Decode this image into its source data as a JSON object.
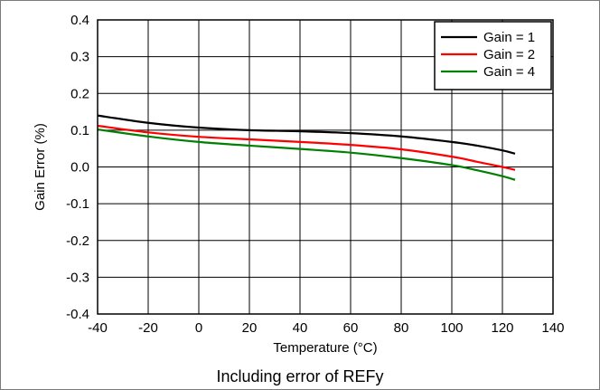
{
  "chart_data": {
    "type": "line",
    "title": "",
    "caption": "Including error of REFy",
    "xlabel": "Temperature (°C)",
    "ylabel": "Gain Error (%)",
    "xlim": [
      -40,
      140
    ],
    "ylim": [
      -0.4,
      0.4
    ],
    "x_ticks": [
      -40,
      -20,
      0,
      20,
      40,
      60,
      80,
      100,
      120,
      140
    ],
    "y_ticks": [
      -0.4,
      -0.3,
      -0.2,
      -0.1,
      0.0,
      0.1,
      0.2,
      0.3,
      0.4
    ],
    "x_tick_labels": [
      "-40",
      "-20",
      "0",
      "20",
      "40",
      "60",
      "80",
      "100",
      "120",
      "140"
    ],
    "y_tick_labels": [
      "-0.4",
      "-0.3",
      "-0.2",
      "-0.1",
      "0.0",
      "0.1",
      "0.2",
      "0.3",
      "0.4"
    ],
    "grid": true,
    "legend_position": "top-right",
    "series": [
      {
        "name": "Gain = 1",
        "color": "#000000",
        "x": [
          -40,
          -20,
          0,
          20,
          40,
          60,
          80,
          100,
          110,
          120,
          125
        ],
        "y": [
          0.14,
          0.12,
          0.107,
          0.1,
          0.097,
          0.092,
          0.083,
          0.068,
          0.058,
          0.045,
          0.036
        ]
      },
      {
        "name": "Gain = 2",
        "color": "#ff0000",
        "x": [
          -40,
          -20,
          0,
          20,
          40,
          60,
          80,
          100,
          110,
          120,
          125
        ],
        "y": [
          0.112,
          0.094,
          0.082,
          0.075,
          0.068,
          0.06,
          0.048,
          0.028,
          0.014,
          0.0,
          -0.008
        ]
      },
      {
        "name": "Gain = 4",
        "color": "#008000",
        "x": [
          -40,
          -20,
          0,
          20,
          40,
          60,
          80,
          100,
          110,
          120,
          125
        ],
        "y": [
          0.102,
          0.083,
          0.068,
          0.058,
          0.049,
          0.039,
          0.024,
          0.005,
          -0.009,
          -0.025,
          -0.035
        ]
      }
    ]
  }
}
